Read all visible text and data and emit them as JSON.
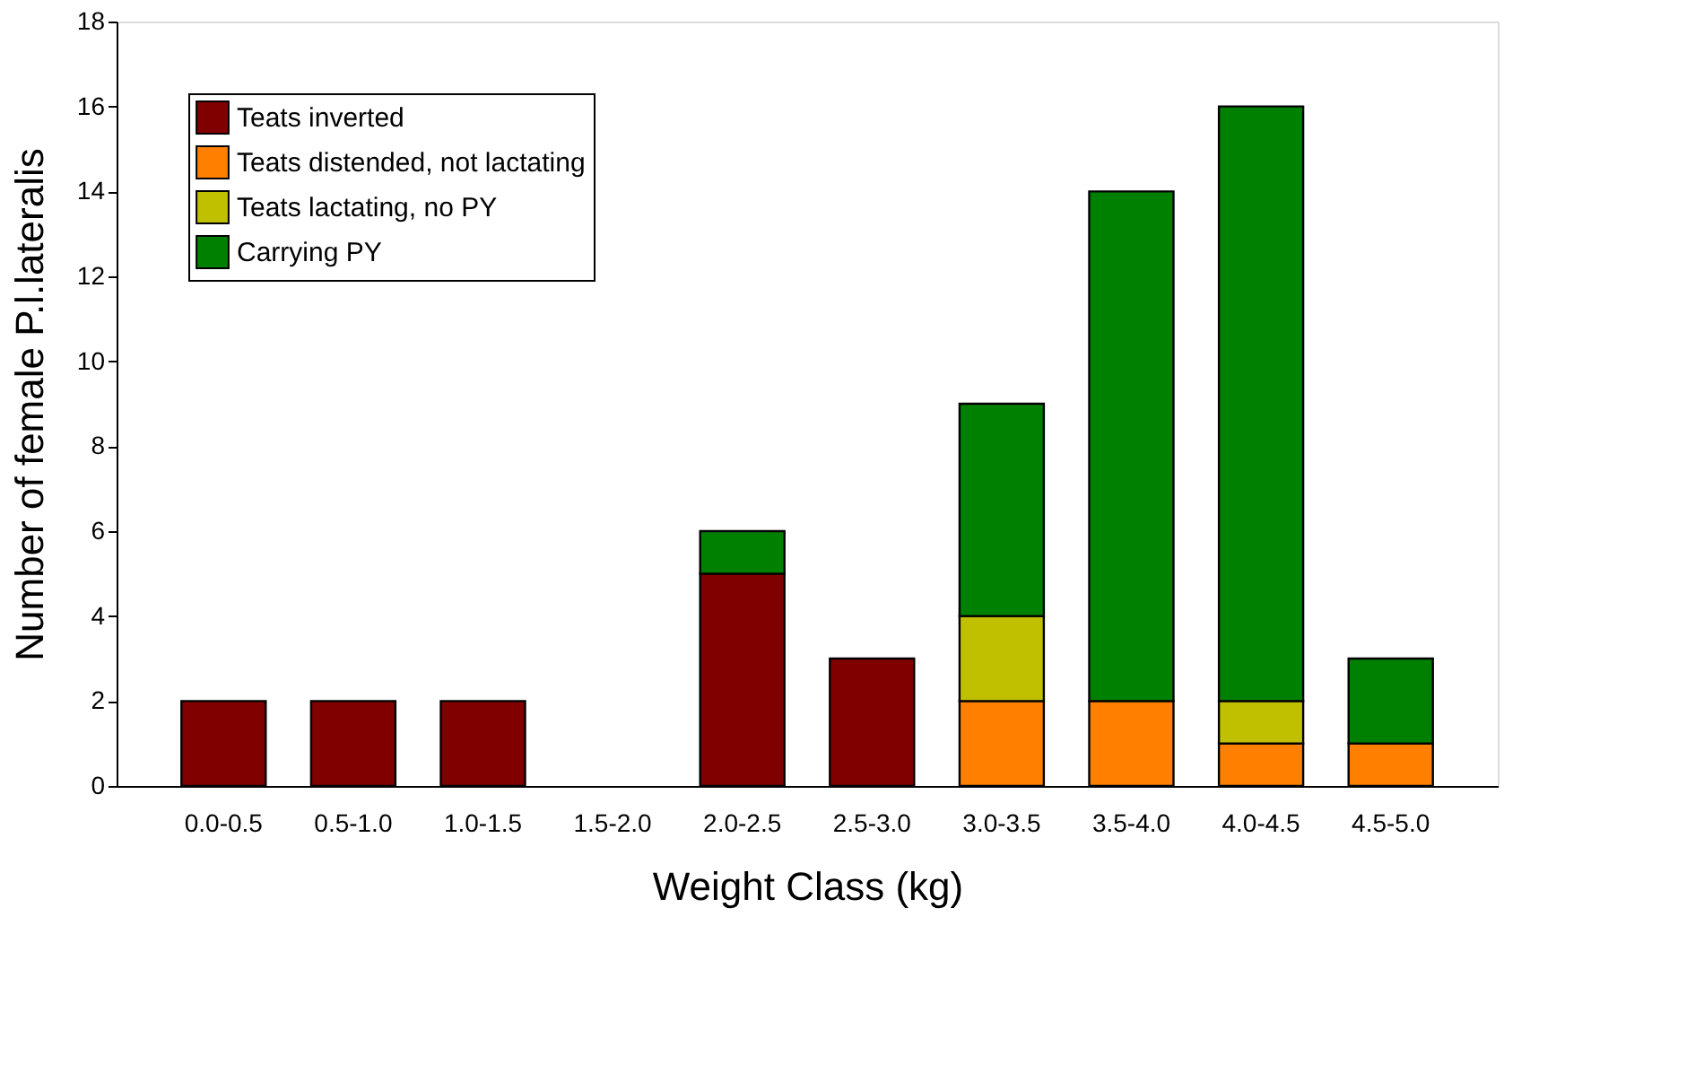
{
  "chart_data": {
    "type": "bar",
    "stacked": true,
    "xlabel": "Weight Class (kg)",
    "ylabel": "Number of female P.l.lateralis",
    "categories": [
      "0.0-0.5",
      "0.5-1.0",
      "1.0-1.5",
      "1.5-2.0",
      "2.0-2.5",
      "2.5-3.0",
      "3.0-3.5",
      "3.5-4.0",
      "4.0-4.5",
      "4.5-5.0"
    ],
    "series": [
      {
        "name": "Teats inverted",
        "color": "#800000",
        "values": [
          2,
          2,
          2,
          0,
          5,
          3,
          0,
          0,
          0,
          0
        ]
      },
      {
        "name": "Teats distended, not lactating",
        "color": "#ff8000",
        "values": [
          0,
          0,
          0,
          0,
          0,
          0,
          2,
          2,
          1,
          1
        ]
      },
      {
        "name": "Teats lactating, no PY",
        "color": "#c0c000",
        "values": [
          0,
          0,
          0,
          0,
          0,
          0,
          2,
          0,
          1,
          0
        ]
      },
      {
        "name": "Carrying PY",
        "color": "#008000",
        "values": [
          0,
          0,
          0,
          0,
          1,
          0,
          5,
          12,
          14,
          2
        ]
      }
    ],
    "ylim": [
      0,
      18
    ],
    "yticks": [
      0,
      2,
      4,
      6,
      8,
      10,
      12,
      14,
      16,
      18
    ],
    "grid": false,
    "legend": "top left"
  }
}
